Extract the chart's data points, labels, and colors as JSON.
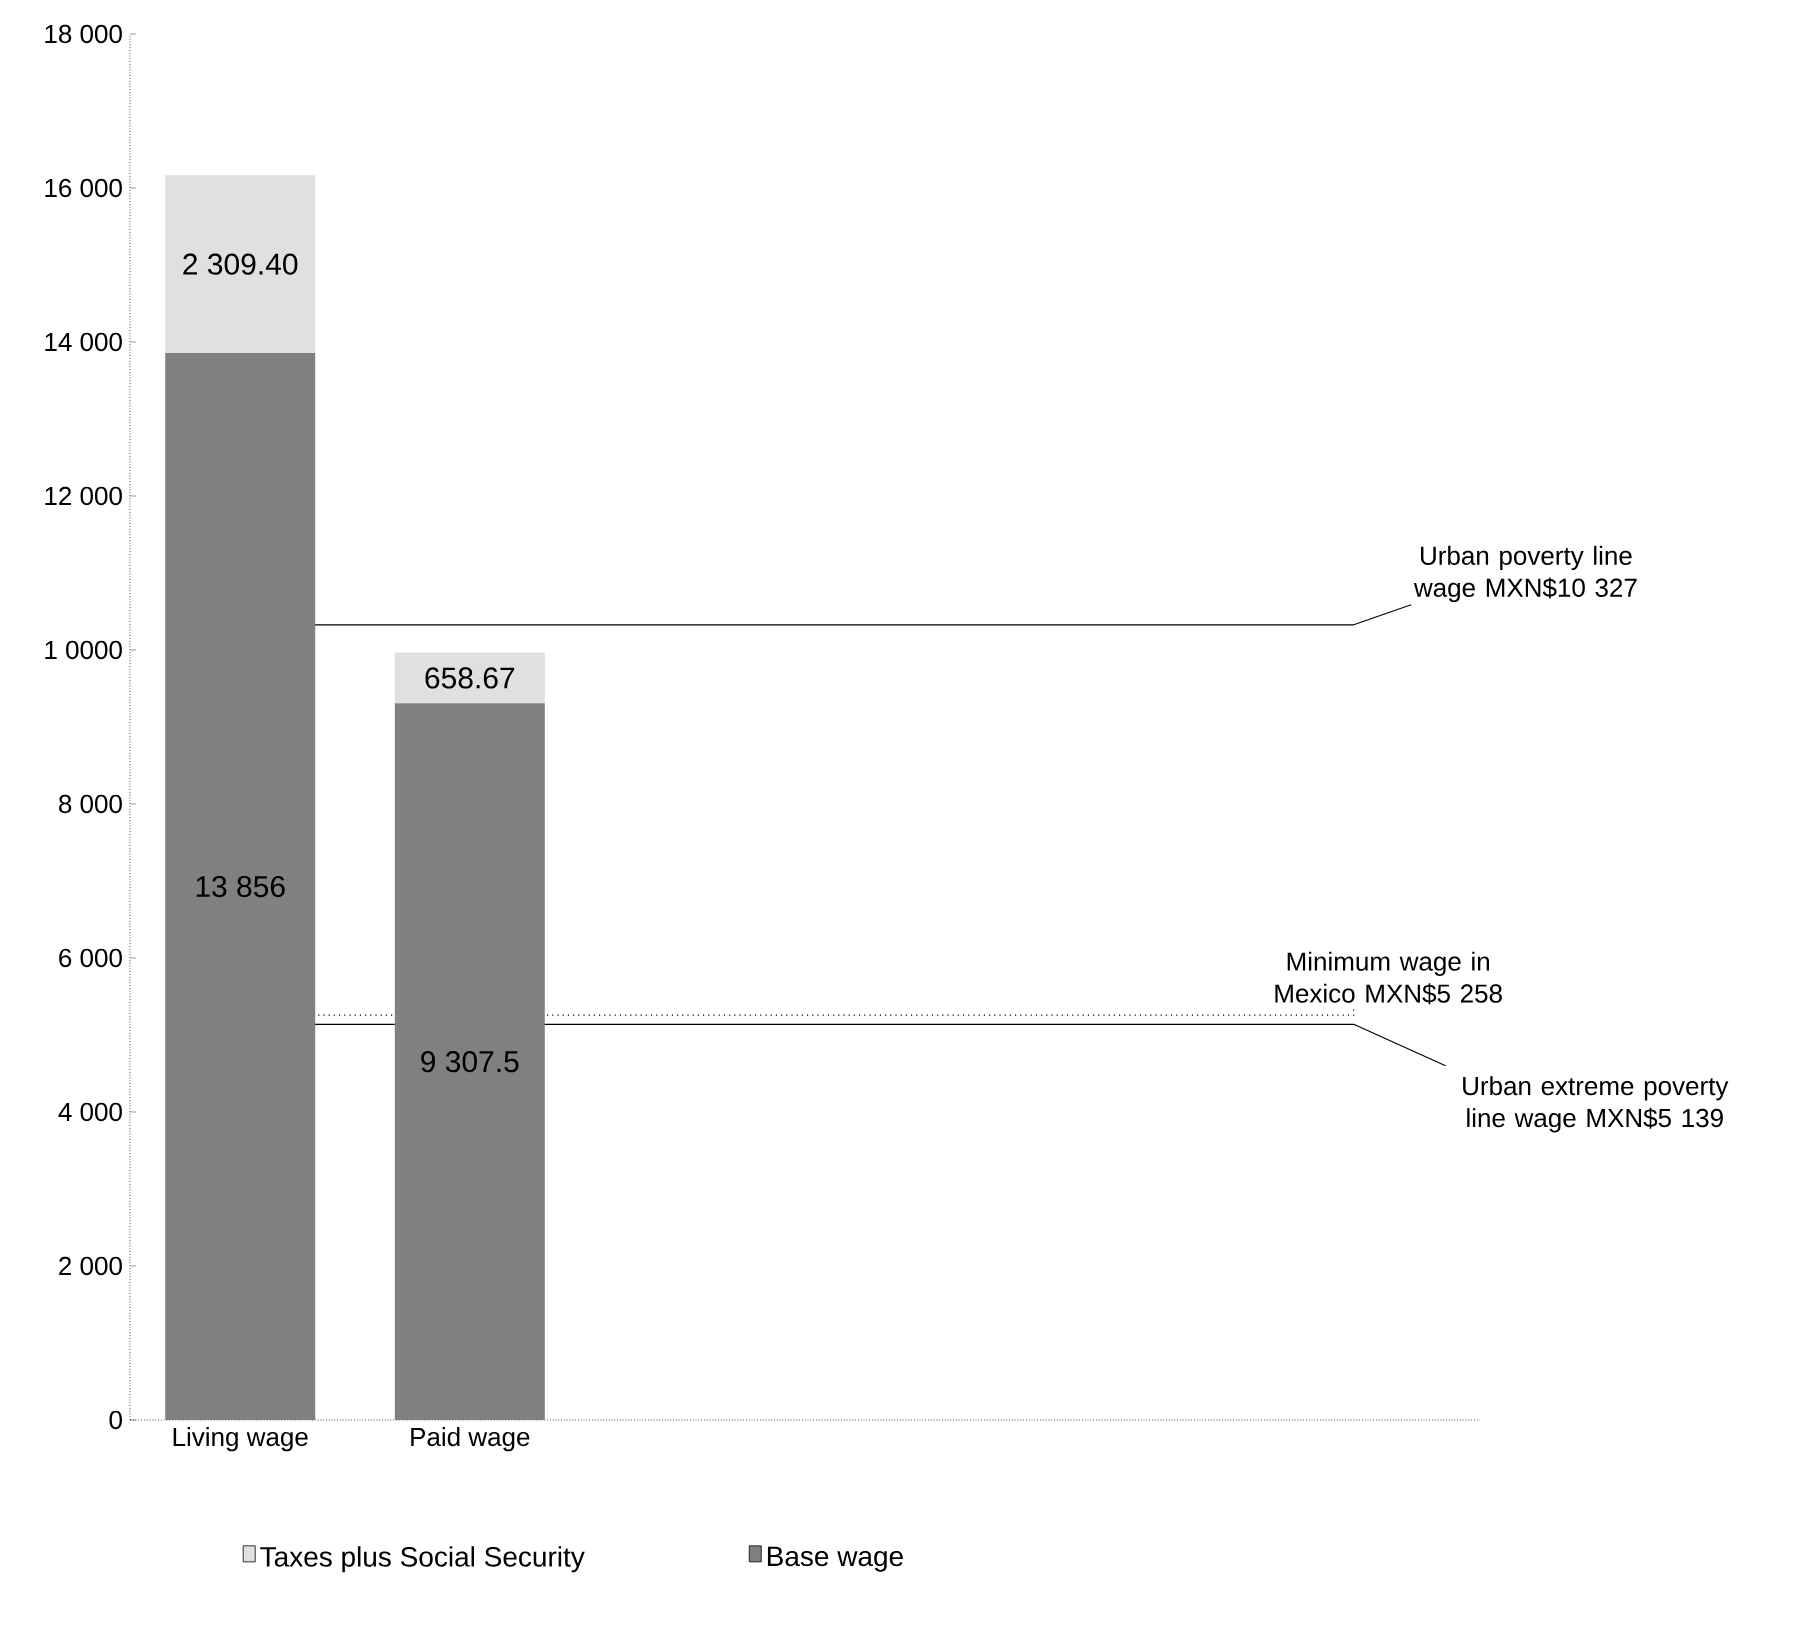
{
  "chart_data": {
    "type": "bar",
    "stacked": true,
    "categories": [
      "Living wage",
      "Paid wage"
    ],
    "series": [
      {
        "name": "Base wage",
        "color": "#808080",
        "values": [
          13856,
          9307.5
        ],
        "value_labels": [
          "13 856",
          "9 307.5"
        ]
      },
      {
        "name": "Taxes plus Social Security",
        "color": "#e0e0e0",
        "values": [
          2309.4,
          658.67
        ],
        "value_labels": [
          "2 309.40",
          "658.67"
        ]
      }
    ],
    "ylim": [
      0,
      18000
    ],
    "yticks": [
      0,
      {
        "value": 2000,
        "label": "2 000"
      },
      {
        "value": 4000,
        "label": "4 000"
      },
      {
        "value": 6000,
        "label": "6 000"
      },
      {
        "value": 8000,
        "label": "8 000"
      },
      {
        "value": 10000,
        "label": "1 0000"
      },
      {
        "value": 12000,
        "label": "12 000"
      },
      {
        "value": 14000,
        "label": "14 000"
      },
      {
        "value": 16000,
        "label": "16 000"
      },
      {
        "value": 18000,
        "label": "18 000"
      }
    ],
    "ref_lines": [
      {
        "axis": "y",
        "value": 10327,
        "label": "Urban poverty line wage MXN$10 327",
        "line_style": "solid"
      },
      {
        "axis": "y",
        "value": 5258,
        "label": "Minimum wage in Mexico MXN$5 258",
        "line_style": "dotted"
      },
      {
        "axis": "y",
        "value": 5139,
        "label": "Urban extreme poverty line wage MXN$5 139",
        "line_style": "solid"
      }
    ],
    "legend": "bottom",
    "grid": false
  }
}
